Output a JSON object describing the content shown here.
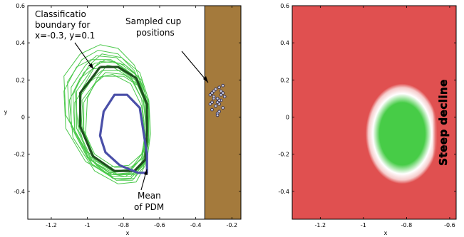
{
  "chart_data": [
    {
      "type": "line",
      "title": "",
      "xlabel": "x",
      "ylabel": "y",
      "xlim": [
        -1.33,
        -0.15
      ],
      "ylim": [
        -0.55,
        0.6
      ],
      "x_ticks": [
        -1.2,
        -1,
        -0.8,
        -0.6,
        -0.4,
        -0.2
      ],
      "x_tick_labels": [
        "-1.2",
        "-1",
        "-0.8",
        "-0.6",
        "-0.4",
        "-0.2"
      ],
      "y_ticks": [
        -0.4,
        -0.2,
        0,
        0.2,
        0.4,
        0.6
      ],
      "y_tick_labels": [
        "-0.4",
        "-0.2",
        "0",
        "0.2",
        "0.4",
        "0.6"
      ],
      "grid": false,
      "colors": {
        "sampled_boundaries": "#4cc94c",
        "classification_boundary": "#1f4f1f",
        "mean_pdm": "#4a4fa8",
        "cup_region": "#a47a3c"
      },
      "series": [
        {
          "role": "classification boundary",
          "x": [
            -0.93,
            -0.83,
            -0.73,
            -0.67,
            -0.67,
            -0.68,
            -0.74,
            -0.85,
            -0.97,
            -1.04,
            -1.04,
            -0.96,
            -0.93
          ],
          "y": [
            0.27,
            0.27,
            0.21,
            0.07,
            -0.1,
            -0.23,
            -0.29,
            -0.29,
            -0.21,
            -0.05,
            0.13,
            0.23,
            0.27
          ]
        },
        {
          "role": "mean of PDM",
          "x": [
            -0.67,
            -0.67,
            -0.71,
            -0.78,
            -0.85,
            -0.91,
            -0.93,
            -0.9,
            -0.82,
            -0.72,
            -0.67,
            -0.67
          ],
          "y": [
            -0.3,
            -0.2,
            0.05,
            0.12,
            0.12,
            0.03,
            -0.1,
            -0.19,
            -0.26,
            -0.3,
            -0.3,
            -0.2
          ]
        }
      ],
      "sampled_boundaries": [
        {
          "x": [
            -0.93,
            -0.82,
            -0.72,
            -0.66,
            -0.66,
            -0.68,
            -0.75,
            -0.86,
            -0.98,
            -1.06,
            -1.06,
            -0.98,
            -0.93
          ],
          "y": [
            0.3,
            0.29,
            0.22,
            0.08,
            -0.1,
            -0.24,
            -0.31,
            -0.31,
            -0.23,
            -0.06,
            0.14,
            0.25,
            0.3
          ]
        },
        {
          "x": [
            -0.95,
            -0.84,
            -0.74,
            -0.68,
            -0.67,
            -0.7,
            -0.77,
            -0.88,
            -1.0,
            -1.09,
            -1.09,
            -1.01,
            -0.95
          ],
          "y": [
            0.33,
            0.32,
            0.24,
            0.09,
            -0.09,
            -0.22,
            -0.29,
            -0.3,
            -0.22,
            -0.05,
            0.16,
            0.28,
            0.33
          ]
        },
        {
          "x": [
            -0.92,
            -0.81,
            -0.72,
            -0.67,
            -0.66,
            -0.69,
            -0.76,
            -0.85,
            -0.96,
            -1.03,
            -1.04,
            -0.97,
            -0.92
          ],
          "y": [
            0.25,
            0.25,
            0.19,
            0.06,
            -0.11,
            -0.22,
            -0.27,
            -0.27,
            -0.2,
            -0.05,
            0.11,
            0.21,
            0.25
          ]
        },
        {
          "x": [
            -0.96,
            -0.85,
            -0.75,
            -0.69,
            -0.67,
            -0.69,
            -0.74,
            -0.84,
            -0.97,
            -1.07,
            -1.08,
            -1.02,
            -0.96
          ],
          "y": [
            0.29,
            0.3,
            0.23,
            0.1,
            -0.07,
            -0.23,
            -0.33,
            -0.34,
            -0.26,
            -0.08,
            0.12,
            0.24,
            0.29
          ]
        },
        {
          "x": [
            -0.9,
            -0.79,
            -0.7,
            -0.66,
            -0.66,
            -0.7,
            -0.79,
            -0.9,
            -1.0,
            -1.05,
            -1.03,
            -0.96,
            -0.9
          ],
          "y": [
            0.31,
            0.28,
            0.2,
            0.06,
            -0.12,
            -0.26,
            -0.32,
            -0.3,
            -0.21,
            -0.04,
            0.15,
            0.27,
            0.31
          ]
        },
        {
          "x": [
            -0.94,
            -0.83,
            -0.74,
            -0.68,
            -0.67,
            -0.7,
            -0.76,
            -0.86,
            -0.99,
            -1.1,
            -1.11,
            -1.03,
            -0.94
          ],
          "y": [
            0.36,
            0.34,
            0.25,
            0.11,
            -0.06,
            -0.2,
            -0.28,
            -0.29,
            -0.21,
            -0.02,
            0.19,
            0.31,
            0.36
          ]
        },
        {
          "x": [
            -0.91,
            -0.8,
            -0.72,
            -0.67,
            -0.66,
            -0.68,
            -0.74,
            -0.83,
            -0.95,
            -1.02,
            -1.03,
            -0.96,
            -0.91
          ],
          "y": [
            0.22,
            0.22,
            0.17,
            0.05,
            -0.12,
            -0.25,
            -0.31,
            -0.31,
            -0.24,
            -0.08,
            0.09,
            0.18,
            0.22
          ]
        },
        {
          "x": [
            -0.97,
            -0.86,
            -0.76,
            -0.69,
            -0.67,
            -0.68,
            -0.73,
            -0.83,
            -0.96,
            -1.08,
            -1.1,
            -1.04,
            -0.97
          ],
          "y": [
            0.26,
            0.27,
            0.21,
            0.08,
            -0.1,
            -0.26,
            -0.35,
            -0.36,
            -0.29,
            -0.11,
            0.09,
            0.21,
            0.26
          ]
        },
        {
          "x": [
            -0.93,
            -0.83,
            -0.74,
            -0.68,
            -0.66,
            -0.69,
            -0.77,
            -0.88,
            -1.01,
            -1.12,
            -1.13,
            -1.04,
            -0.93
          ],
          "y": [
            0.39,
            0.37,
            0.28,
            0.13,
            -0.05,
            -0.19,
            -0.26,
            -0.27,
            -0.18,
            0.01,
            0.22,
            0.34,
            0.39
          ]
        },
        {
          "x": [
            -0.89,
            -0.79,
            -0.71,
            -0.66,
            -0.66,
            -0.69,
            -0.75,
            -0.84,
            -0.95,
            -1.01,
            -1.0,
            -0.94,
            -0.89
          ],
          "y": [
            0.28,
            0.26,
            0.19,
            0.05,
            -0.13,
            -0.27,
            -0.34,
            -0.34,
            -0.26,
            -0.09,
            0.1,
            0.22,
            0.28
          ]
        },
        {
          "x": [
            -0.96,
            -0.86,
            -0.76,
            -0.7,
            -0.68,
            -0.7,
            -0.76,
            -0.86,
            -0.98,
            -1.07,
            -1.07,
            -1.01,
            -0.96
          ],
          "y": [
            0.21,
            0.23,
            0.18,
            0.06,
            -0.11,
            -0.25,
            -0.32,
            -0.32,
            -0.25,
            -0.09,
            0.08,
            0.17,
            0.21
          ]
        },
        {
          "x": [
            -0.92,
            -0.81,
            -0.71,
            -0.66,
            -0.65,
            -0.67,
            -0.73,
            -0.84,
            -0.97,
            -1.05,
            -1.07,
            -0.99,
            -0.92
          ],
          "y": [
            0.34,
            0.32,
            0.24,
            0.09,
            -0.09,
            -0.23,
            -0.3,
            -0.31,
            -0.24,
            -0.07,
            0.15,
            0.28,
            0.34
          ]
        },
        {
          "x": [
            -0.98,
            -0.87,
            -0.77,
            -0.7,
            -0.68,
            -0.7,
            -0.77,
            -0.88,
            -1.01,
            -1.12,
            -1.13,
            -1.06,
            -0.98
          ],
          "y": [
            0.31,
            0.31,
            0.24,
            0.1,
            -0.08,
            -0.22,
            -0.3,
            -0.31,
            -0.24,
            -0.06,
            0.14,
            0.27,
            0.31
          ]
        },
        {
          "x": [
            -0.9,
            -0.8,
            -0.71,
            -0.66,
            -0.66,
            -0.69,
            -0.76,
            -0.86,
            -0.96,
            -1.02,
            -1.02,
            -0.95,
            -0.9
          ],
          "y": [
            0.24,
            0.23,
            0.17,
            0.04,
            -0.13,
            -0.26,
            -0.33,
            -0.33,
            -0.25,
            -0.09,
            0.08,
            0.19,
            0.24
          ]
        }
      ]
    },
    {
      "type": "heatmap",
      "title": "",
      "xlabel": "x",
      "ylabel": "",
      "xlim": [
        -1.33,
        -0.57
      ],
      "ylim": [
        -0.55,
        0.6
      ],
      "x_ticks": [
        -1.2,
        -1,
        -0.8,
        -0.6
      ],
      "x_tick_labels": [
        "-1.2",
        "-1",
        "-0.8",
        "-0.6"
      ],
      "y_ticks": [
        -0.4,
        -0.2,
        0,
        0.2,
        0.4,
        0.6
      ],
      "y_tick_labels": [
        "-0.4",
        "-0.2",
        "0",
        "0.2",
        "0.4",
        "0.6"
      ],
      "grid": false,
      "colors": {
        "low": "#e05050",
        "mid": "#ffffff",
        "high": "#47cc47"
      },
      "region_center": {
        "x": -0.82,
        "y": -0.09
      },
      "region_radii": {
        "x": 0.17,
        "y": 0.27
      },
      "sharp_edge_x": -0.66
    }
  ],
  "annotations": {
    "classification": {
      "lines": [
        "Classificatio",
        "boundary for",
        "x=-0.3, y=0.1"
      ]
    },
    "sampled": {
      "lines": [
        "Sampled cup",
        "positions"
      ]
    },
    "mean": {
      "lines": [
        "Mean",
        "of PDM"
      ]
    },
    "decline": {
      "text": "Steep decline"
    }
  },
  "cup_positions": {
    "x": [
      -0.32,
      -0.31,
      -0.3,
      -0.29,
      -0.28,
      -0.27,
      -0.26,
      -0.25,
      -0.24,
      -0.31,
      -0.3,
      -0.29,
      -0.28,
      -0.27,
      -0.26,
      -0.25,
      -0.32,
      -0.3,
      -0.28,
      -0.27,
      -0.25,
      -0.31,
      -0.29,
      -0.27,
      -0.28,
      -0.26
    ],
    "y": [
      0.12,
      0.08,
      0.14,
      0.06,
      0.1,
      0.16,
      0.09,
      0.13,
      0.11,
      0.04,
      0.1,
      0.15,
      0.02,
      0.07,
      0.12,
      0.05,
      0.07,
      0.11,
      0.08,
      0.03,
      0.17,
      0.13,
      0.06,
      0.09,
      0.01,
      0.14
    ]
  }
}
